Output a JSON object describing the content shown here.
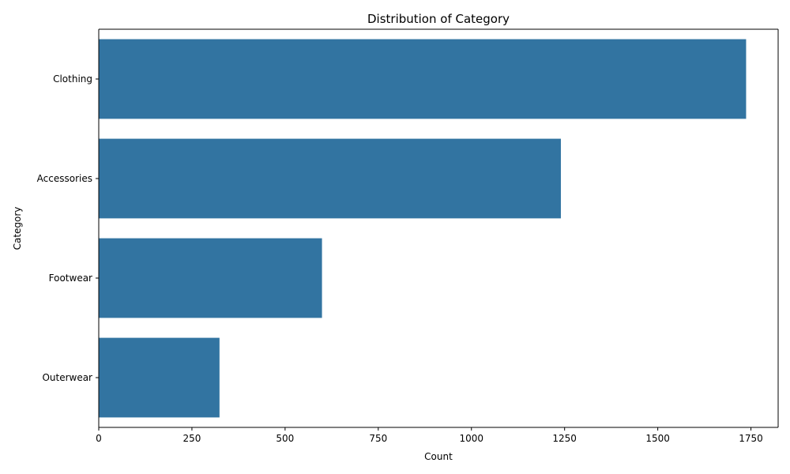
{
  "chart_data": {
    "type": "bar",
    "orientation": "horizontal",
    "title": "Distribution of Category",
    "xlabel": "Count",
    "ylabel": "Category",
    "categories": [
      "Clothing",
      "Accessories",
      "Footwear",
      "Outerwear"
    ],
    "values": [
      1737,
      1240,
      599,
      324
    ],
    "xlim": [
      0,
      1823
    ],
    "xticks": [
      0,
      250,
      500,
      750,
      1000,
      1250,
      1500,
      1750
    ],
    "xtick_labels": [
      "0",
      "250",
      "500",
      "750",
      "1000",
      "1250",
      "1500",
      "1750"
    ],
    "grid": false,
    "legend": "none",
    "bar_color": "#3274a1"
  }
}
